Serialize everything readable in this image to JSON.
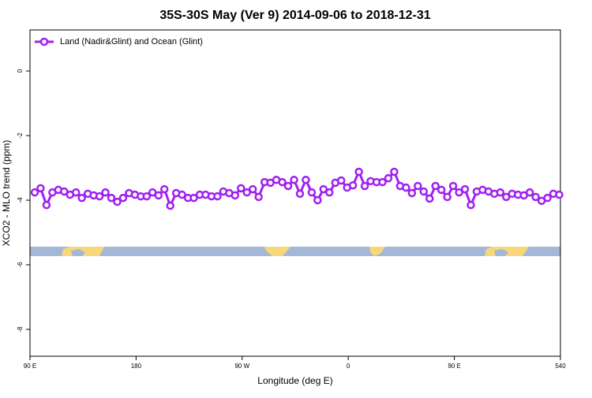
{
  "chart_data": {
    "type": "line",
    "title": "35S-30S May (Ver 9)   2014-09-06 to 2018-12-31",
    "xlabel": "Longitude (deg E)",
    "ylabel": "XCO2 - MLO trend (ppm)",
    "xlim": [
      90,
      540
    ],
    "ylim": [
      1.27,
      -8.83
    ],
    "xticks": [
      {
        "value": 90,
        "label": "90 E"
      },
      180,
      {
        "value": 270,
        "label": "90 W"
      },
      {
        "value": 360,
        "label": "0"
      },
      {
        "value": 450,
        "label": "90 E"
      },
      540
    ],
    "yticks": [
      0,
      -2,
      -4,
      -6,
      -8
    ],
    "legend": "top-left",
    "x": [
      94,
      99,
      104,
      109,
      114,
      119,
      124,
      129,
      134,
      139,
      144,
      149,
      154,
      159,
      164,
      169,
      174,
      179,
      184,
      189,
      194,
      199,
      204,
      209,
      214,
      219,
      224,
      229,
      234,
      239,
      244,
      249,
      254,
      259,
      264,
      269,
      274,
      279,
      284,
      289,
      294,
      299,
      304,
      309,
      314,
      319,
      324,
      329,
      334,
      339,
      344,
      349,
      354,
      359,
      364,
      369,
      374,
      379,
      384,
      389,
      394,
      399,
      404,
      409,
      414,
      419,
      424,
      429,
      434,
      439,
      444,
      449,
      454,
      459,
      464,
      469,
      474,
      479,
      484,
      489,
      494,
      499,
      504,
      509,
      514,
      519,
      524,
      529,
      534,
      539
    ],
    "series": [
      {
        "name": "Land (Nadir&Glint) and Ocean (Glint)",
        "color": "#a020f0",
        "values": [
          -3.76,
          -3.63,
          -4.15,
          -3.76,
          -3.68,
          -3.73,
          -3.83,
          -3.76,
          -3.93,
          -3.8,
          -3.85,
          -3.88,
          -3.76,
          -3.93,
          -4.05,
          -3.93,
          -3.78,
          -3.83,
          -3.88,
          -3.88,
          -3.76,
          -3.85,
          -3.66,
          -4.17,
          -3.78,
          -3.83,
          -3.93,
          -3.93,
          -3.83,
          -3.83,
          -3.88,
          -3.88,
          -3.73,
          -3.78,
          -3.85,
          -3.63,
          -3.76,
          -3.66,
          -3.9,
          -3.44,
          -3.46,
          -3.37,
          -3.44,
          -3.56,
          -3.37,
          -3.8,
          -3.37,
          -3.76,
          -4.0,
          -3.66,
          -3.76,
          -3.46,
          -3.39,
          -3.61,
          -3.54,
          -3.12,
          -3.56,
          -3.41,
          -3.44,
          -3.44,
          -3.32,
          -3.12,
          -3.56,
          -3.61,
          -3.78,
          -3.56,
          -3.73,
          -3.95,
          -3.56,
          -3.68,
          -3.9,
          -3.56,
          -3.76,
          -3.66,
          -4.15,
          -3.73,
          -3.68,
          -3.73,
          -3.8,
          -3.76,
          -3.9,
          -3.8,
          -3.83,
          -3.85,
          -3.76,
          -3.9,
          -4.02,
          -3.93,
          -3.8,
          -3.83
        ]
      }
    ]
  }
}
